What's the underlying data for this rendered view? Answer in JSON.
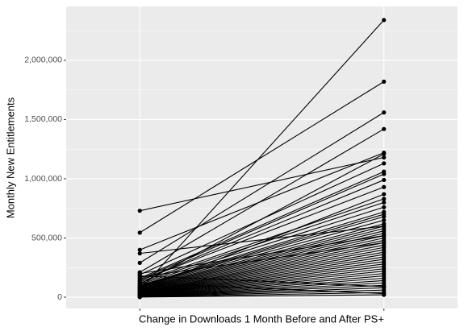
{
  "chart_data": {
    "type": "slope",
    "x_label": "Change in Downloads 1 Month Before and After PS+",
    "y_label": "Monthly New Entitlements",
    "categories": [
      null,
      null
    ],
    "ylim": [
      -95000,
      2455000
    ],
    "yticks": [
      0,
      {
        "value": 500000,
        "label": "500,000"
      },
      {
        "value": 1000000,
        "label": "1,000,000"
      },
      {
        "value": 1500000,
        "label": "1,500,000"
      },
      {
        "value": 2000000,
        "label": "2,000,000"
      }
    ],
    "y_minor_ticks": [
      250000,
      750000,
      1250000,
      1750000,
      2250000
    ],
    "grid": true,
    "color": "#000000",
    "series": [
      {
        "values": [
          730000,
          1180000
        ]
      },
      {
        "values": [
          545000,
          1820000
        ]
      },
      {
        "values": [
          400000,
          1220000
        ]
      },
      {
        "values": [
          370000,
          600000
        ]
      },
      {
        "values": [
          290000,
          1560000
        ]
      },
      {
        "values": [
          210000,
          1420000
        ]
      },
      {
        "values": [
          190000,
          1130000
        ]
      },
      {
        "values": [
          60000,
          2340000
        ]
      },
      {
        "values": [
          160000,
          1060000
        ]
      },
      {
        "values": [
          150000,
          1040000
        ]
      },
      {
        "values": [
          140000,
          930000
        ]
      },
      {
        "values": [
          130000,
          830000
        ]
      },
      {
        "values": [
          120000,
          800000
        ]
      },
      {
        "values": [
          110000,
          760000
        ]
      },
      {
        "values": [
          100000,
          720000
        ]
      },
      {
        "values": [
          95000,
          700000
        ]
      },
      {
        "values": [
          90000,
          680000
        ]
      },
      {
        "values": [
          85000,
          650000
        ]
      },
      {
        "values": [
          80000,
          620000
        ]
      },
      {
        "values": [
          75000,
          600000
        ]
      },
      {
        "values": [
          70000,
          580000
        ]
      },
      {
        "values": [
          65000,
          560000
        ]
      },
      {
        "values": [
          60000,
          540000
        ]
      },
      {
        "values": [
          55000,
          520000
        ]
      },
      {
        "values": [
          50000,
          500000
        ]
      },
      {
        "values": [
          45000,
          480000
        ]
      },
      {
        "values": [
          40000,
          460000
        ]
      },
      {
        "values": [
          38000,
          440000
        ]
      },
      {
        "values": [
          35000,
          420000
        ]
      },
      {
        "values": [
          32000,
          400000
        ]
      },
      {
        "values": [
          30000,
          380000
        ]
      },
      {
        "values": [
          28000,
          360000
        ]
      },
      {
        "values": [
          25000,
          340000
        ]
      },
      {
        "values": [
          22000,
          320000
        ]
      },
      {
        "values": [
          20000,
          300000
        ]
      },
      {
        "values": [
          18000,
          280000
        ]
      },
      {
        "values": [
          16000,
          260000
        ]
      },
      {
        "values": [
          14000,
          240000
        ]
      },
      {
        "values": [
          12000,
          220000
        ]
      },
      {
        "values": [
          10000,
          200000
        ]
      },
      {
        "values": [
          9000,
          180000
        ]
      },
      {
        "values": [
          8000,
          160000
        ]
      },
      {
        "values": [
          7000,
          140000
        ]
      },
      {
        "values": [
          6000,
          120000
        ]
      },
      {
        "values": [
          5000,
          100000
        ]
      },
      {
        "values": [
          4000,
          80000
        ]
      },
      {
        "values": [
          3000,
          60000
        ]
      },
      {
        "values": [
          2000,
          40000
        ]
      },
      {
        "values": [
          1000,
          20000
        ]
      },
      {
        "values": [
          180000,
          90000
        ]
      },
      {
        "values": [
          120000,
          30000
        ]
      },
      {
        "values": [
          200000,
          520000
        ]
      },
      {
        "values": [
          170000,
          460000
        ]
      },
      {
        "values": [
          140000,
          990000
        ]
      },
      {
        "values": [
          110000,
          1210000
        ]
      },
      {
        "values": [
          60000,
          870000
        ]
      }
    ]
  }
}
